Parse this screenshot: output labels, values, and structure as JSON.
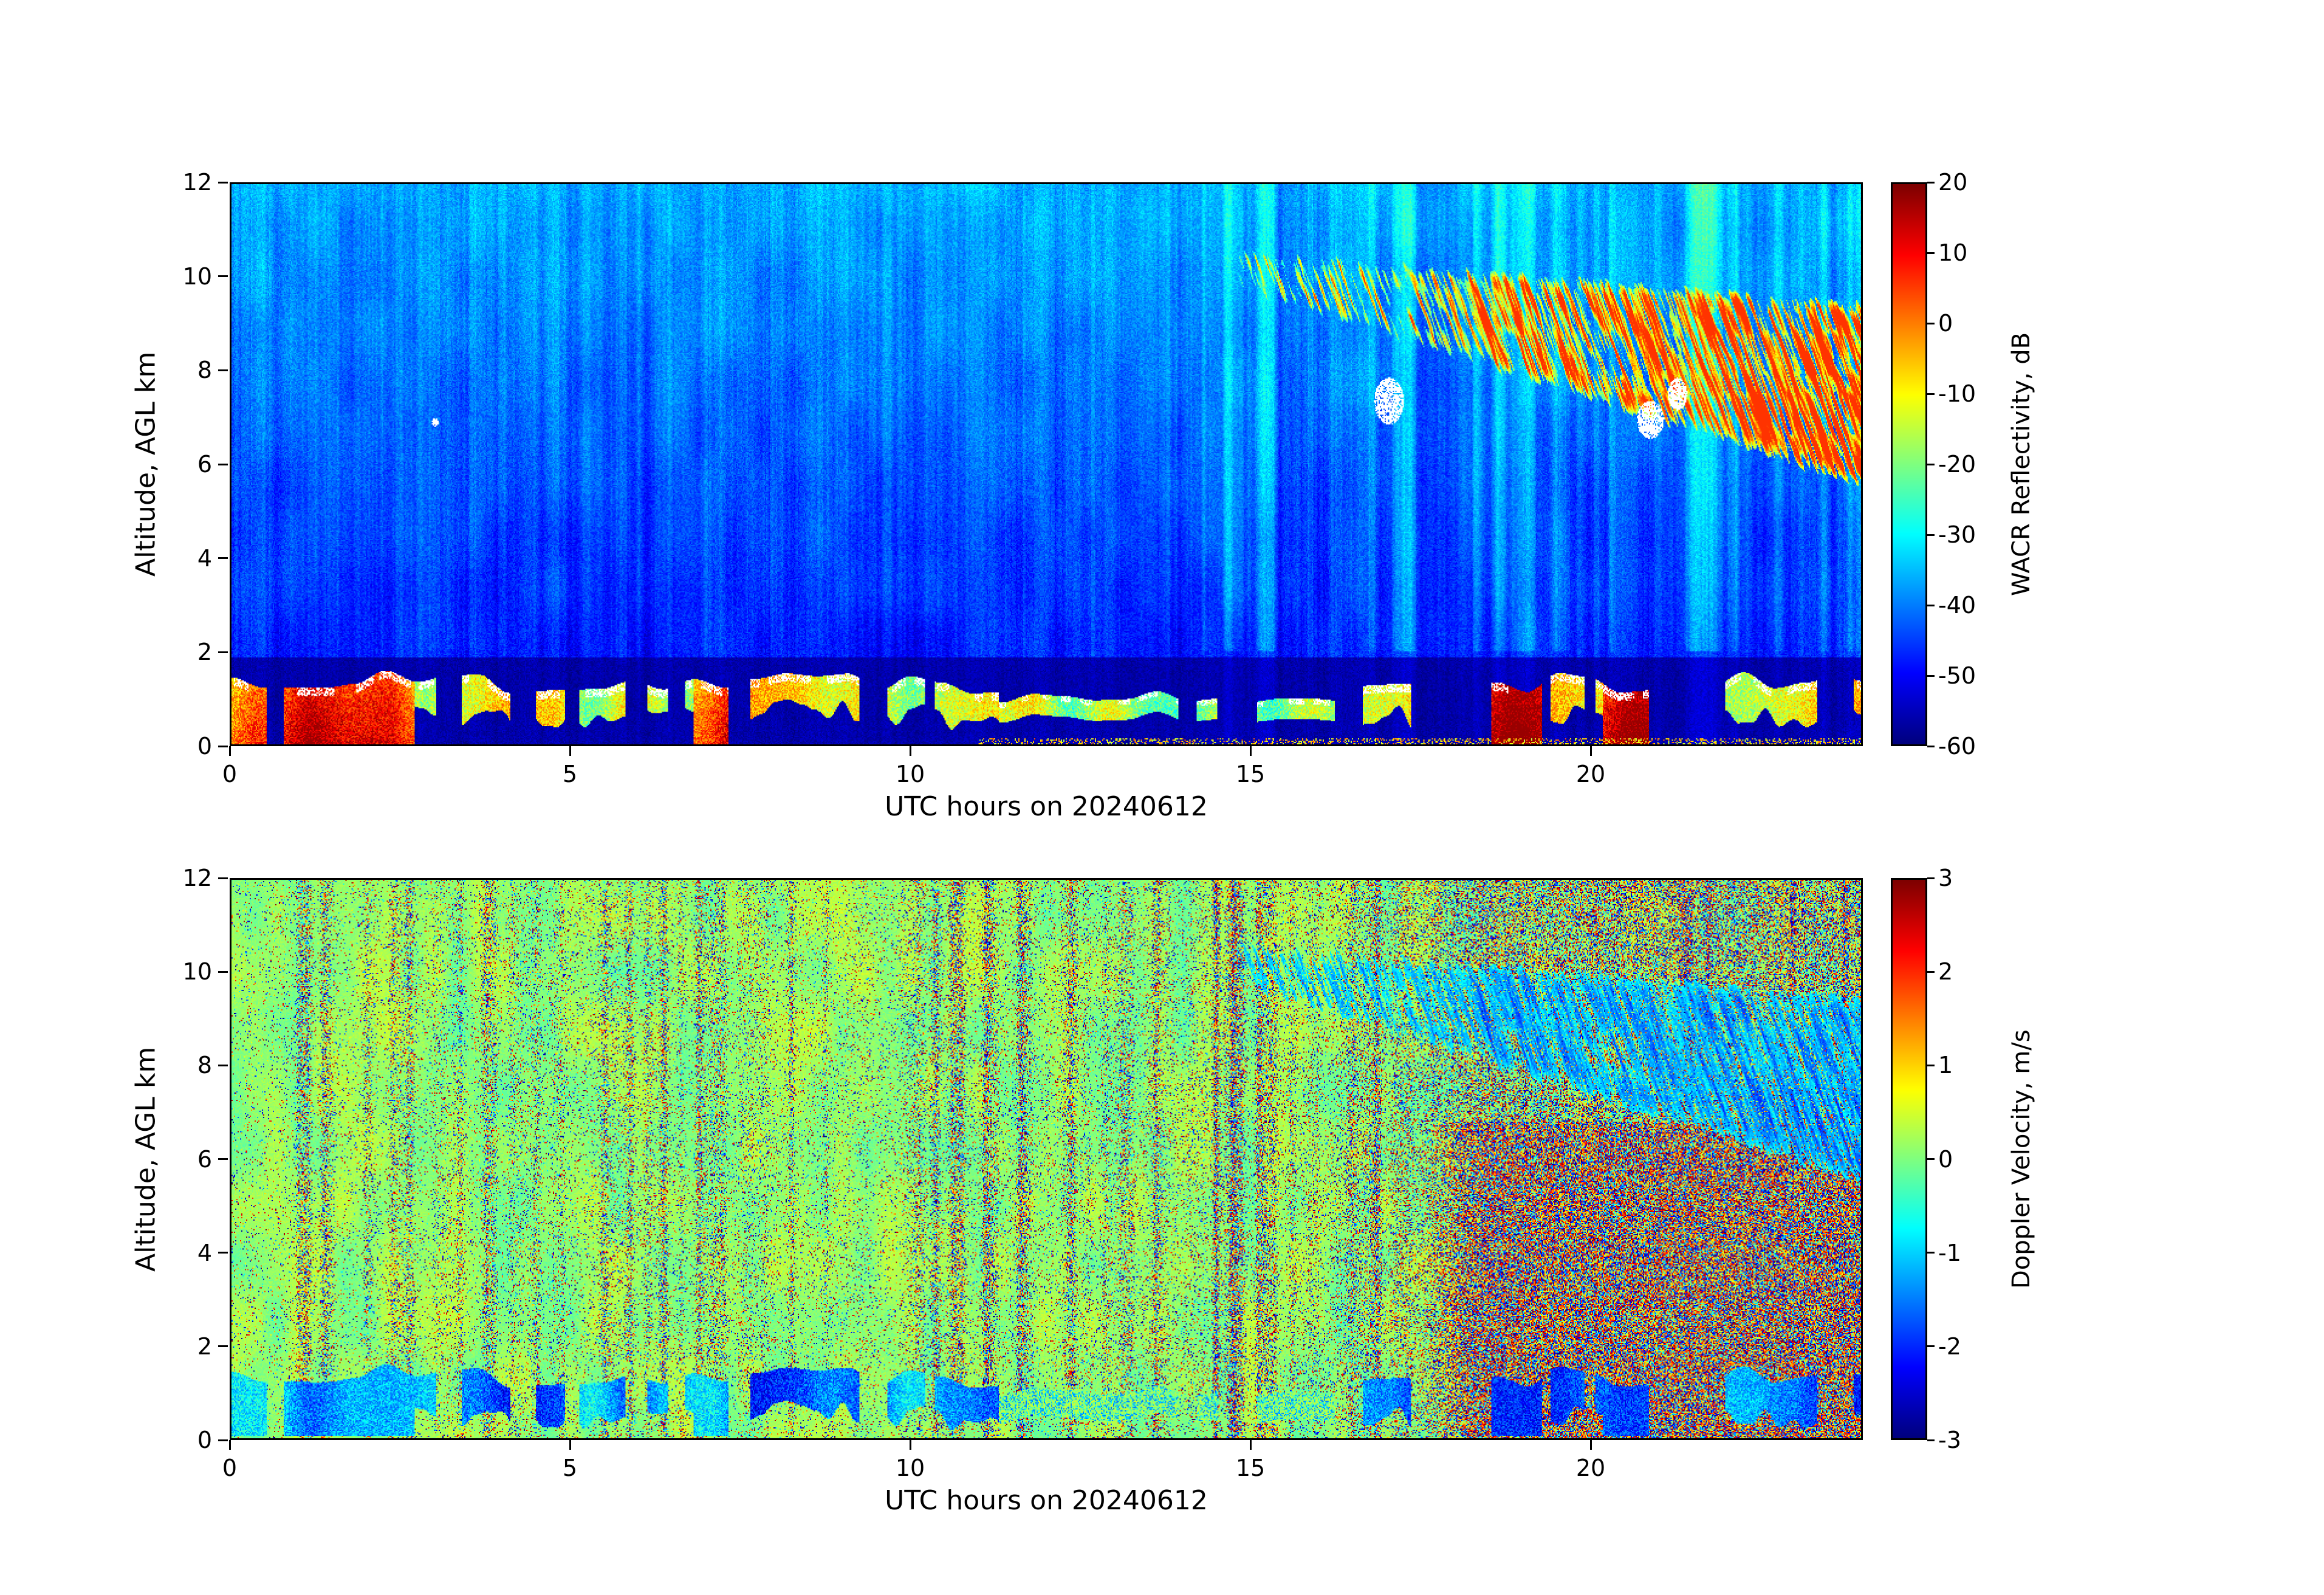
{
  "figure": {
    "background": "#ffffff",
    "axis_color": "#000000",
    "text_color": "#000000"
  },
  "chart_data": [
    {
      "type": "heatmap",
      "title": "",
      "xlabel": "UTC hours on 20240612",
      "ylabel": "Altitude, AGL km",
      "xlim": [
        0,
        24
      ],
      "ylim": [
        0,
        12
      ],
      "xticks": [
        0,
        5,
        10,
        15,
        20
      ],
      "yticks": [
        0,
        2,
        4,
        6,
        8,
        10,
        12
      ],
      "grid": false,
      "colormap": "jet",
      "colorbar": {
        "label": "WACR Reflectivity, dB",
        "min": -60,
        "max": 20,
        "ticks": [
          20,
          10,
          0,
          -10,
          -20,
          -30,
          -40,
          -50,
          -60
        ]
      },
      "features": {
        "background_db_at_12km": -37,
        "background_db_at_2km": -48,
        "clear_air_floor_db_below_2km": -57,
        "boundary_layer_cloud": {
          "base_km": 0.4,
          "top_km": 1.6,
          "hours": [
            0,
            24
          ],
          "white_saturated_tops": true,
          "strong_echo_hours": [
            [
              0,
              2.7
            ],
            [
              6.8,
              7.6
            ],
            [
              18.5,
              19.4
            ],
            [
              20.2,
              21.2
            ]
          ],
          "thin_line_hours": [
            11.3,
            16.5
          ]
        },
        "cirrus": {
          "start_hour": 14.8,
          "top_km_start": 10.6,
          "top_km_end": 9.4,
          "base_km_start": 9.6,
          "base_km_end": 5.5,
          "max_db": 0,
          "white_saturated_patches_at": [
            [
              17.05,
              7.35
            ],
            [
              20.9,
              6.95
            ],
            [
              21.3,
              7.5
            ]
          ]
        }
      }
    },
    {
      "type": "heatmap",
      "title": "",
      "xlabel": "UTC hours on 20240612",
      "ylabel": "Altitude, AGL km",
      "xlim": [
        0,
        24
      ],
      "ylim": [
        0,
        12
      ],
      "xticks": [
        0,
        5,
        10,
        15,
        20
      ],
      "yticks": [
        0,
        2,
        4,
        6,
        8,
        10,
        12
      ],
      "grid": false,
      "colormap": "jet",
      "colorbar": {
        "label": "Doppler Velocity, m/s",
        "min": -3,
        "max": 3,
        "ticks": [
          3,
          2,
          1,
          0,
          -1,
          -2,
          -3
        ]
      },
      "features": {
        "clear_air_ms": 0.1,
        "noise_speckle": "random +/-3 m/s speckle in vertical column bands, densest after 17 UTC below 7 km",
        "cirrus_fall_streaks_ms": -1.2,
        "boundary_layer_cloud_ms": -1.5
      }
    }
  ]
}
